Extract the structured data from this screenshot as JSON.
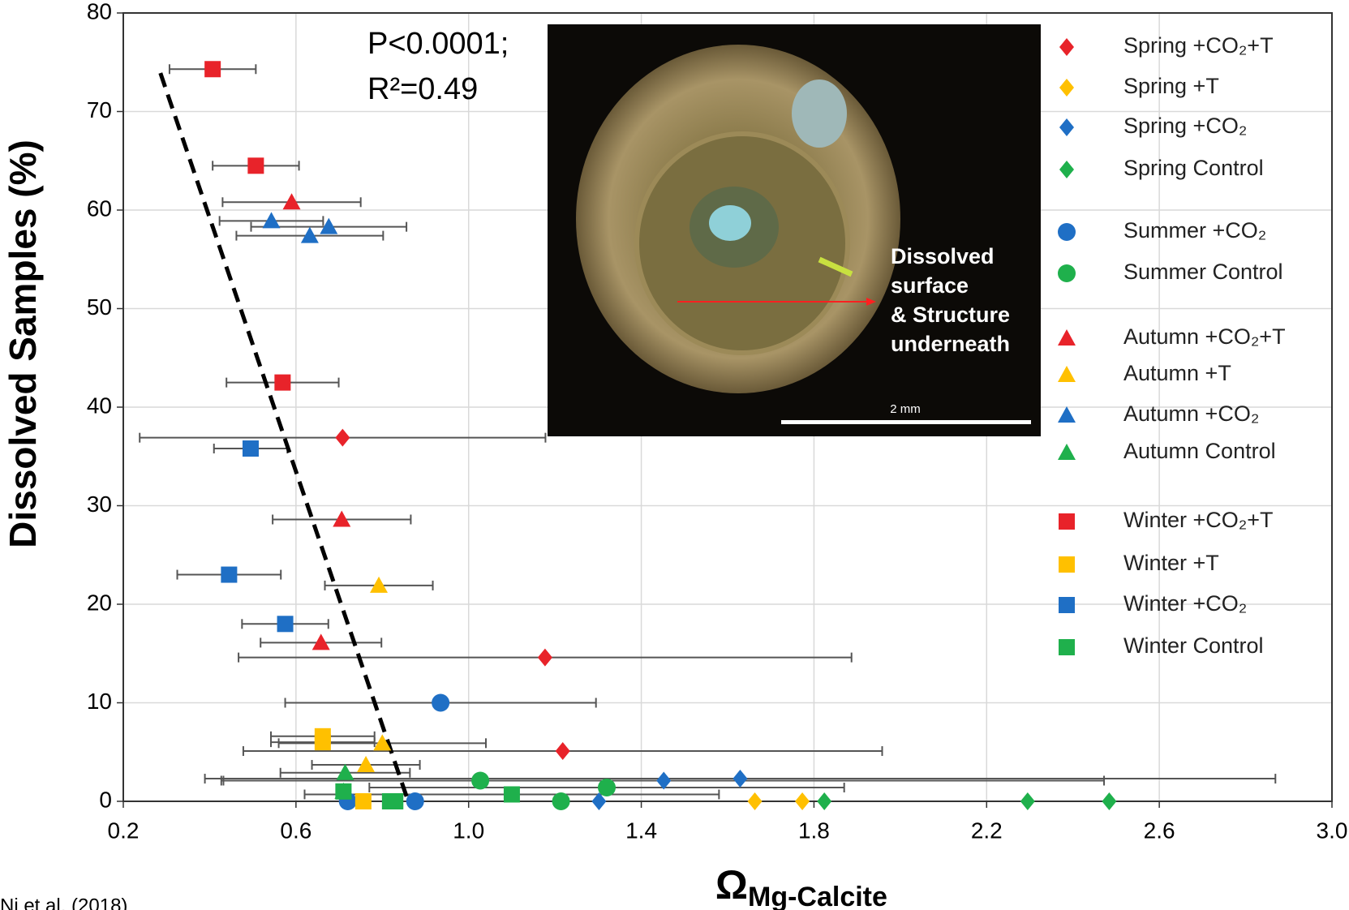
{
  "chart_data": {
    "type": "scatter",
    "ylabel": "Dissolved Samples (%)",
    "xlabel": "Ω",
    "xlabel_subscript": "Mg-Calcite",
    "xlim": [
      0.2,
      3.0
    ],
    "xticks": [
      0.2,
      0.6,
      {
        "value": 1,
        "label": "1.0"
      },
      1.4,
      1.8,
      2.2,
      2.6,
      {
        "value": 3,
        "label": "3.0"
      }
    ],
    "ylim": [
      0,
      80
    ],
    "yticks": [
      0,
      10,
      20,
      30,
      40,
      50,
      60,
      70,
      80
    ],
    "grid": true,
    "annotations": [
      "P<0.0001;",
      "R²=0.49"
    ],
    "trendline": {
      "x": [
        0.286,
        0.86
      ],
      "y": [
        73.9,
        0
      ]
    },
    "series": [
      {
        "name": "Spring +CO₂+T",
        "color": "#e8232a",
        "marker": "diamond",
        "x": [
          0.708,
          1.177,
          1.218
        ],
        "values": [
          36.9,
          14.6,
          5.1
        ],
        "xerr": [
          0.47,
          0.71,
          0.74
        ]
      },
      {
        "name": "Spring +T",
        "color": "#ffc000",
        "marker": "diamond",
        "x": [
          1.663,
          1.773
        ],
        "values": [
          0,
          0
        ],
        "xerr": [
          null,
          null
        ]
      },
      {
        "name": "Spring +CO₂",
        "color": "#1f6fc5",
        "marker": "diamond",
        "x": [
          1.302,
          1.452,
          1.629
        ],
        "values": [
          0,
          2.1,
          2.3
        ],
        "xerr": [
          null,
          1.02,
          1.24
        ]
      },
      {
        "name": "Spring Control",
        "color": "#1fb04c",
        "marker": "diamond",
        "x": [
          1.824,
          2.295,
          2.484
        ],
        "values": [
          0,
          0,
          0
        ],
        "xerr": [
          null,
          null,
          null
        ]
      },
      {
        "name": "Summer +CO₂",
        "color": "#1f6fc5",
        "marker": "circle",
        "x": [
          0.72,
          0.876,
          0.935
        ],
        "values": [
          0,
          0,
          10.0
        ],
        "xerr": [
          null,
          null,
          0.36
        ]
      },
      {
        "name": "Summer Control",
        "color": "#1fb04c",
        "marker": "circle",
        "x": [
          1.027,
          1.214,
          1.32
        ],
        "values": [
          2.1,
          0,
          1.4
        ],
        "xerr": [
          0.6,
          null,
          0.55
        ]
      },
      {
        "name": "Autumn +CO₂+T",
        "color": "#e8232a",
        "marker": "triangle",
        "x": [
          0.59,
          0.706,
          0.658
        ],
        "values": [
          60.8,
          28.6,
          16.1
        ],
        "xerr": [
          0.16,
          0.16,
          0.14
        ]
      },
      {
        "name": "Autumn +T",
        "color": "#ffc000",
        "marker": "triangle",
        "x": [
          0.792,
          0.8,
          0.762
        ],
        "values": [
          21.9,
          5.9,
          3.7
        ],
        "xerr": [
          0.125,
          0.24,
          0.125
        ]
      },
      {
        "name": "Autumn +CO₂",
        "color": "#1f6fc5",
        "marker": "triangle",
        "x": [
          0.543,
          0.676,
          0.632
        ],
        "values": [
          58.9,
          58.3,
          57.4
        ],
        "xerr": [
          0.12,
          0.18,
          0.17
        ]
      },
      {
        "name": "Autumn Control",
        "color": "#1fb04c",
        "marker": "triangle",
        "x": [
          0.714,
          0.71
        ],
        "values": [
          2.9,
          1.0
        ],
        "xerr": [
          0.15,
          null
        ]
      },
      {
        "name": "Winter +CO₂+T",
        "color": "#e8232a",
        "marker": "square",
        "x": [
          0.407,
          0.507,
          0.569
        ],
        "values": [
          74.3,
          64.5,
          42.5
        ],
        "xerr": [
          0.1,
          0.1,
          0.13
        ]
      },
      {
        "name": "Winter +T",
        "color": "#ffc000",
        "marker": "square",
        "x": [
          0.662,
          0.662,
          0.756
        ],
        "values": [
          6.6,
          6.0,
          0
        ],
        "xerr": [
          0.12,
          0.12,
          null
        ]
      },
      {
        "name": "Winter +CO₂",
        "color": "#1f6fc5",
        "marker": "square",
        "x": [
          0.495,
          0.445,
          0.575
        ],
        "values": [
          35.8,
          23.0,
          18.0
        ],
        "xerr": [
          0.085,
          0.12,
          0.1
        ]
      },
      {
        "name": "Winter Control",
        "color": "#1fb04c",
        "marker": "square",
        "x": [
          0.71,
          0.818,
          0.83,
          1.1
        ],
        "values": [
          1.0,
          0,
          0,
          0.7
        ],
        "xerr": [
          null,
          null,
          null,
          0.48
        ]
      }
    ],
    "photo": {
      "annotation": [
        "Dissolved",
        "surface",
        "& Structure",
        "underneath"
      ],
      "scale_label": "2 mm"
    },
    "source": "Ni et al. (2018)"
  }
}
